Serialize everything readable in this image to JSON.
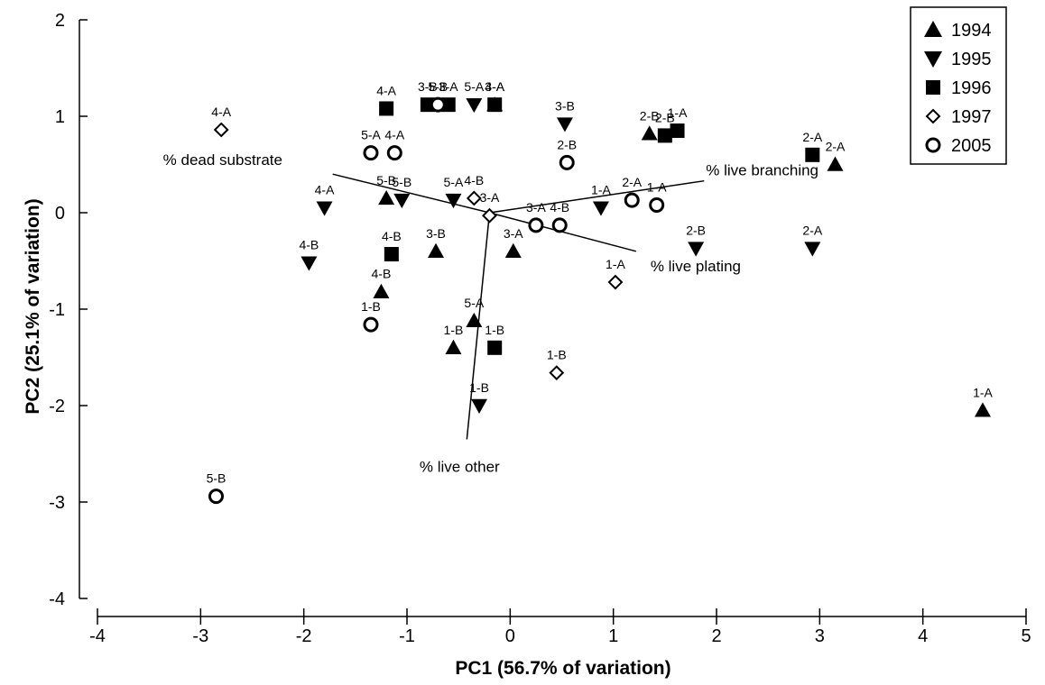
{
  "chart_data": {
    "type": "scatter",
    "xlabel": "PC1 (56.7% of variation)",
    "ylabel": "PC2 (25.1% of variation)",
    "xlim": [
      -4,
      5
    ],
    "ylim": [
      -4,
      2
    ],
    "xticks": [
      "-4",
      "-3",
      "-2",
      "-1",
      "0",
      "1",
      "2",
      "3",
      "4",
      "5"
    ],
    "yticks": [
      "2",
      "1",
      "0",
      "-1",
      "-2",
      "-3",
      "-4"
    ],
    "legend_position": "top-right",
    "series": [
      {
        "name": "1994",
        "marker": "triangle-up",
        "points": [
          {
            "x": 1.35,
            "y": 0.82,
            "label": "2-B"
          },
          {
            "x": 3.15,
            "y": 0.5,
            "label": "2-A"
          },
          {
            "x": -1.2,
            "y": 0.15,
            "label": "5-B"
          },
          {
            "x": -0.15,
            "y": 1.12,
            "label": "3-A"
          },
          {
            "x": -0.72,
            "y": -0.4,
            "label": "3-B"
          },
          {
            "x": 0.03,
            "y": -0.4,
            "label": "3-A"
          },
          {
            "x": -1.25,
            "y": -0.82,
            "label": "4-B"
          },
          {
            "x": -0.35,
            "y": -1.12,
            "label": "5-A"
          },
          {
            "x": -0.55,
            "y": -1.4,
            "label": "1-B"
          },
          {
            "x": 4.58,
            "y": -2.05,
            "label": "1-A"
          }
        ]
      },
      {
        "name": "1995",
        "marker": "triangle-down",
        "points": [
          {
            "x": -0.35,
            "y": 1.12,
            "label": "5-A"
          },
          {
            "x": 0.53,
            "y": 0.92,
            "label": "3-B"
          },
          {
            "x": -1.05,
            "y": 0.13,
            "label": "5-B"
          },
          {
            "x": -0.55,
            "y": 0.13,
            "label": "5-A"
          },
          {
            "x": -1.8,
            "y": 0.05,
            "label": "4-A"
          },
          {
            "x": 0.88,
            "y": 0.05,
            "label": "1-A"
          },
          {
            "x": -1.95,
            "y": -0.52,
            "label": "4-B"
          },
          {
            "x": 1.8,
            "y": -0.37,
            "label": "2-B"
          },
          {
            "x": 2.93,
            "y": -0.37,
            "label": "2-A"
          },
          {
            "x": -0.3,
            "y": -2.0,
            "label": "1-B"
          }
        ]
      },
      {
        "name": "1996",
        "marker": "square",
        "points": [
          {
            "x": -1.2,
            "y": 1.08,
            "label": "4-A"
          },
          {
            "x": -0.8,
            "y": 1.12,
            "label": "3-B"
          },
          {
            "x": -0.6,
            "y": 1.12,
            "label": "3-A"
          },
          {
            "x": -0.15,
            "y": 1.12,
            "label": "4-A"
          },
          {
            "x": 1.5,
            "y": 0.8,
            "label": "2-B"
          },
          {
            "x": 1.62,
            "y": 0.85,
            "label": "1-A"
          },
          {
            "x": 2.93,
            "y": 0.6,
            "label": "2-A"
          },
          {
            "x": -1.15,
            "y": -0.43,
            "label": "4-B"
          },
          {
            "x": -0.15,
            "y": -1.4,
            "label": "1-B"
          }
        ]
      },
      {
        "name": "1997",
        "marker": "diamond-open",
        "points": [
          {
            "x": -2.8,
            "y": 0.86,
            "label": "4-A"
          },
          {
            "x": -0.35,
            "y": 0.15,
            "label": "4-B"
          },
          {
            "x": -0.2,
            "y": -0.03,
            "label": "3-A"
          },
          {
            "x": 1.02,
            "y": -0.72,
            "label": "1-A"
          },
          {
            "x": 0.45,
            "y": -1.66,
            "label": "1-B"
          }
        ]
      },
      {
        "name": "2005",
        "marker": "circle-open",
        "points": [
          {
            "x": -0.7,
            "y": 1.12,
            "label": "5-B"
          },
          {
            "x": -1.35,
            "y": 0.62,
            "label": "5-A"
          },
          {
            "x": -1.12,
            "y": 0.62,
            "label": "4-A"
          },
          {
            "x": 0.55,
            "y": 0.52,
            "label": "2-B"
          },
          {
            "x": 1.18,
            "y": 0.13,
            "label": "2-A"
          },
          {
            "x": 1.42,
            "y": 0.08,
            "label": "1-A"
          },
          {
            "x": 0.25,
            "y": -0.13,
            "label": "3-A"
          },
          {
            "x": 0.48,
            "y": -0.13,
            "label": "4-B"
          },
          {
            "x": -1.35,
            "y": -1.16,
            "label": "1-B"
          },
          {
            "x": -2.85,
            "y": -2.94,
            "label": "5-B"
          }
        ]
      }
    ],
    "vectors": [
      {
        "label": "% dead substrate",
        "from": [
          -0.2,
          0.0
        ],
        "to": [
          -1.72,
          0.4
        ]
      },
      {
        "label": "% live branching",
        "from": [
          -0.2,
          0.0
        ],
        "to": [
          1.88,
          0.33
        ]
      },
      {
        "label": "% live plating",
        "from": [
          -0.2,
          0.0
        ],
        "to": [
          1.22,
          -0.4
        ]
      },
      {
        "label": "% live other",
        "from": [
          -0.2,
          0.0
        ],
        "to": [
          -0.42,
          -2.35
        ]
      }
    ]
  }
}
